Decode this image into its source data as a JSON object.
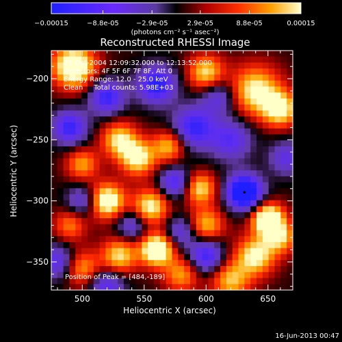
{
  "chart_data": {
    "type": "heatmap",
    "title": "Reconstructed RHESSI Image",
    "xlabel": "Heliocentric X (arcsec)",
    "ylabel": "Heliocentric Y (arcsec)",
    "xlim": [
      475,
      670
    ],
    "ylim": [
      -373,
      -177
    ],
    "x_ticks": [
      500,
      550,
      600,
      650
    ],
    "y_ticks": [
      -200,
      -250,
      -300,
      -350
    ],
    "colorbar": {
      "ticks": [
        "-0.00015",
        "-8.8e-05",
        "-2.9e-05",
        "2.9e-05",
        "8.8e-05",
        "0.00015"
      ],
      "tick_values": [
        -0.00015,
        -8.8e-05,
        -2.9e-05,
        2.9e-05,
        8.8e-05,
        0.00015
      ],
      "range": [
        -0.00015,
        0.00015
      ],
      "label": "(photons cm⁻² s⁻¹ asec⁻²)"
    },
    "annotations": [
      "21-Oct-2004 12:09:32.000 to 12:13:52.000",
      "Detectors: 4F 5F 6F 7F 8F, Att 0",
      "Energy Range: 12.0 - 25.0 keV",
      "Clean     Total counts: 5.98E+03"
    ],
    "peak_label": "Position of Peak = [484,-189]",
    "peak_marker": {
      "x": 631,
      "y": -293
    },
    "features": [
      {
        "x": 493,
        "y": -190,
        "amp": 1.3,
        "s": 12
      },
      {
        "x": 640,
        "y": -210,
        "amp": 1.0,
        "s": 14
      },
      {
        "x": 600,
        "y": -195,
        "amp": 0.9,
        "s": 10
      },
      {
        "x": 660,
        "y": -225,
        "amp": 1.0,
        "s": 10
      },
      {
        "x": 545,
        "y": -265,
        "amp": 1.0,
        "s": 10
      },
      {
        "x": 530,
        "y": -250,
        "amp": 0.9,
        "s": 10
      },
      {
        "x": 570,
        "y": -255,
        "amp": 0.8,
        "s": 9
      },
      {
        "x": 520,
        "y": -300,
        "amp": 1.2,
        "s": 10
      },
      {
        "x": 500,
        "y": -270,
        "amp": 0.7,
        "s": 9
      },
      {
        "x": 555,
        "y": -305,
        "amp": 1.0,
        "s": 10
      },
      {
        "x": 595,
        "y": -290,
        "amp": 0.9,
        "s": 9
      },
      {
        "x": 600,
        "y": -320,
        "amp": 0.8,
        "s": 10
      },
      {
        "x": 560,
        "y": -340,
        "amp": 1.4,
        "s": 9
      },
      {
        "x": 530,
        "y": -345,
        "amp": 0.9,
        "s": 10
      },
      {
        "x": 650,
        "y": -315,
        "amp": 1.4,
        "s": 9
      },
      {
        "x": 640,
        "y": -345,
        "amp": 1.0,
        "s": 11
      },
      {
        "x": 660,
        "y": -330,
        "amp": 0.8,
        "s": 9
      },
      {
        "x": 580,
        "y": -360,
        "amp": 0.7,
        "s": 10
      },
      {
        "x": 620,
        "y": -365,
        "amp": 0.8,
        "s": 11
      },
      {
        "x": 500,
        "y": -355,
        "amp": 0.7,
        "s": 10
      },
      {
        "x": 490,
        "y": -320,
        "amp": 0.6,
        "s": 9
      },
      {
        "x": 520,
        "y": -215,
        "amp": -0.9,
        "s": 10
      },
      {
        "x": 560,
        "y": -205,
        "amp": -1.0,
        "s": 11
      },
      {
        "x": 590,
        "y": -240,
        "amp": -0.9,
        "s": 12
      },
      {
        "x": 620,
        "y": -250,
        "amp": -0.7,
        "s": 12
      },
      {
        "x": 490,
        "y": -240,
        "amp": -0.9,
        "s": 10
      },
      {
        "x": 631,
        "y": -293,
        "amp": -1.5,
        "s": 10
      },
      {
        "x": 575,
        "y": -285,
        "amp": -0.8,
        "s": 9
      },
      {
        "x": 500,
        "y": -300,
        "amp": -0.6,
        "s": 9
      },
      {
        "x": 540,
        "y": -320,
        "amp": -0.6,
        "s": 9
      },
      {
        "x": 600,
        "y": -345,
        "amp": -0.9,
        "s": 10
      },
      {
        "x": 520,
        "y": -370,
        "amp": -0.7,
        "s": 10
      },
      {
        "x": 480,
        "y": -350,
        "amp": -0.7,
        "s": 10
      },
      {
        "x": 610,
        "y": -215,
        "amp": -0.6,
        "s": 10
      },
      {
        "x": 580,
        "y": -325,
        "amp": -0.6,
        "s": 9
      },
      {
        "x": 665,
        "y": -265,
        "amp": -0.6,
        "s": 10
      }
    ],
    "base_level": 0.05
  },
  "timestamp": "16-Jun-2013 00:47"
}
